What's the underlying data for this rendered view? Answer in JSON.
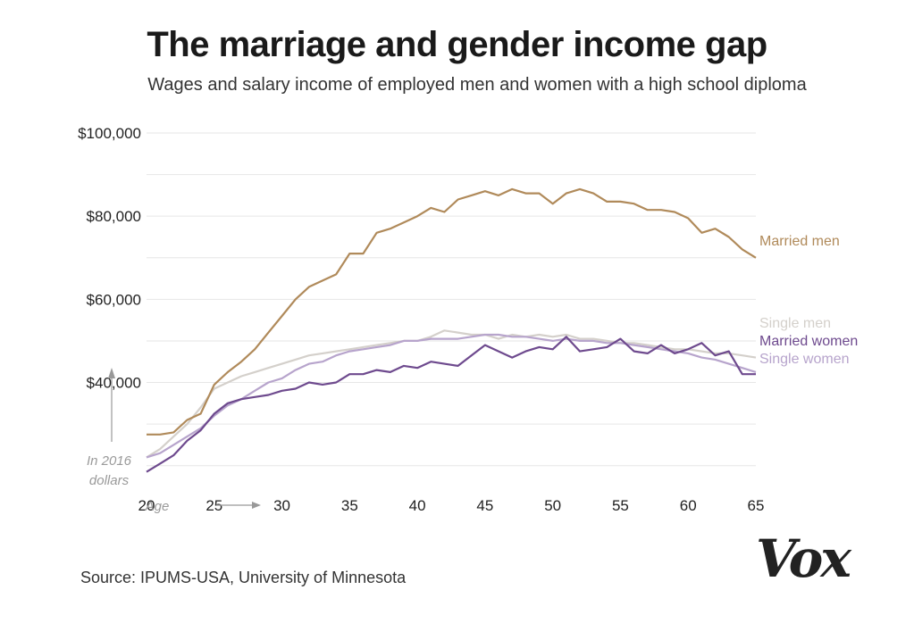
{
  "title": "The marriage and gender income gap",
  "subtitle": "Wages and salary income of employed men and women with a high school diploma",
  "source": "Source: IPUMS-USA, University of Minnesota",
  "logo": "Vox",
  "chart_data": {
    "type": "line",
    "title": "The marriage and gender income gap",
    "subtitle": "Wages and salary income of employed men and women with a high school diploma",
    "xlabel": "Age",
    "ylabel": "In 2016 dollars",
    "ylabel_lines": [
      "In 2016",
      "dollars"
    ],
    "xlim": [
      20,
      65
    ],
    "ylim": [
      15000,
      100000
    ],
    "x_ticks": [
      20,
      25,
      30,
      35,
      40,
      45,
      50,
      55,
      60,
      65
    ],
    "y_ticks": [
      40000,
      60000,
      80000,
      100000
    ],
    "y_tick_labels": [
      "$40,000",
      "$60,000",
      "$80,000",
      "$100,000"
    ],
    "grid_values": [
      20000,
      30000,
      40000,
      50000,
      60000,
      70000,
      80000,
      90000,
      100000
    ],
    "grid": true,
    "legend": "inline labels at right end of each line",
    "x": [
      20,
      21,
      22,
      23,
      24,
      25,
      26,
      27,
      28,
      29,
      30,
      31,
      32,
      33,
      34,
      35,
      36,
      37,
      38,
      39,
      40,
      41,
      42,
      43,
      44,
      45,
      46,
      47,
      48,
      49,
      50,
      51,
      52,
      53,
      54,
      55,
      56,
      57,
      58,
      59,
      60,
      61,
      62,
      63,
      64,
      65
    ],
    "series": [
      {
        "name": "Married men",
        "color": "#b08a5a",
        "values": [
          27500,
          27500,
          28000,
          31000,
          32500,
          39500,
          42500,
          45000,
          48000,
          52000,
          56000,
          60000,
          63000,
          64500,
          66000,
          71000,
          71000,
          76000,
          77000,
          78500,
          80000,
          82000,
          81000,
          84000,
          85000,
          86000,
          85000,
          86500,
          85500,
          85500,
          83000,
          85500,
          86500,
          85500,
          83500,
          83500,
          83000,
          81500,
          81500,
          81000,
          79500,
          76000,
          77000,
          75000,
          72000,
          70000
        ]
      },
      {
        "name": "Single men",
        "color": "#d4d0cb",
        "values": [
          22000,
          24000,
          27000,
          30000,
          34000,
          38500,
          40000,
          41500,
          42500,
          43500,
          44500,
          45500,
          46500,
          47000,
          47500,
          48000,
          48500,
          49000,
          49500,
          50000,
          50000,
          51000,
          52500,
          52000,
          51500,
          51500,
          50500,
          51500,
          51000,
          51500,
          51000,
          51500,
          50500,
          50500,
          50000,
          49500,
          49500,
          49000,
          48500,
          48000,
          48000,
          47500,
          47000,
          47000,
          46500,
          46000
        ]
      },
      {
        "name": "Married women",
        "color": "#6e4a8e",
        "values": [
          18500,
          20500,
          22500,
          26000,
          28500,
          32500,
          35000,
          36000,
          36500,
          37000,
          38000,
          38500,
          40000,
          39500,
          40000,
          42000,
          42000,
          43000,
          42500,
          44000,
          43500,
          45000,
          44500,
          44000,
          46500,
          49000,
          47500,
          46000,
          47500,
          48500,
          48000,
          51000,
          47500,
          48000,
          48500,
          50500,
          47500,
          47000,
          49000,
          47000,
          48000,
          49500,
          46500,
          47500,
          42000,
          42000
        ]
      },
      {
        "name": "Single women",
        "color": "#b7a4cc",
        "values": [
          22000,
          23000,
          25000,
          27000,
          29000,
          32000,
          34500,
          36000,
          38000,
          40000,
          41000,
          43000,
          44500,
          45000,
          46500,
          47500,
          48000,
          48500,
          49000,
          50000,
          50000,
          50500,
          50500,
          50500,
          51000,
          51500,
          51500,
          51000,
          51000,
          50500,
          50000,
          50500,
          50000,
          50000,
          49500,
          49500,
          49000,
          48500,
          48000,
          47500,
          47000,
          46000,
          45500,
          44500,
          43500,
          42500
        ]
      }
    ]
  }
}
